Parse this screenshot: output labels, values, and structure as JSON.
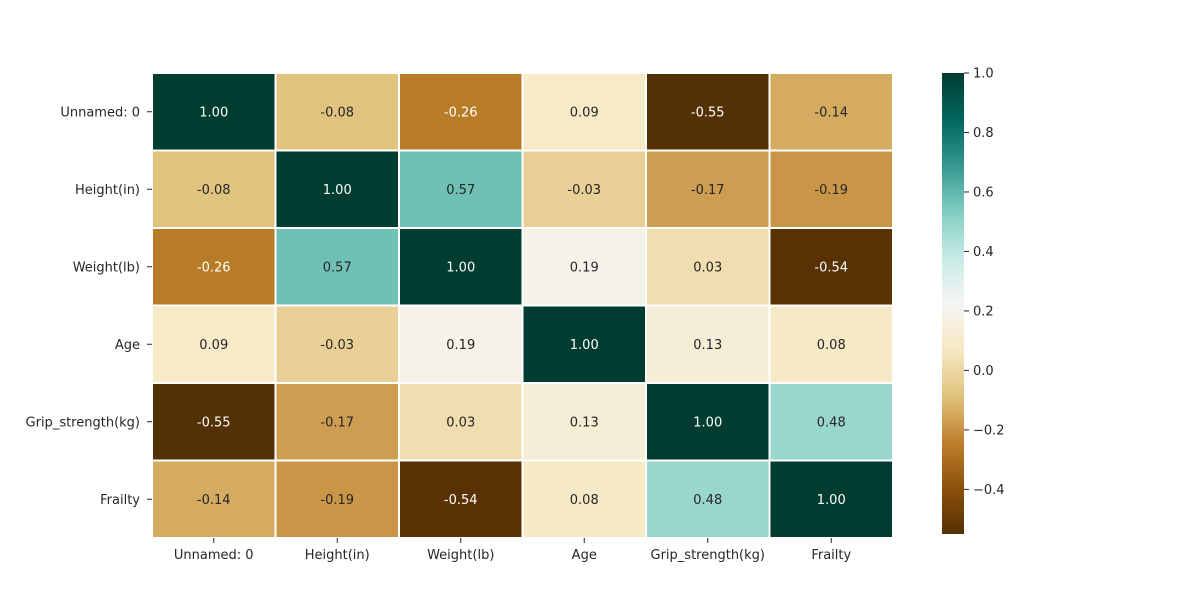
{
  "chart_data": {
    "type": "heatmap",
    "title": "",
    "xlabel": "",
    "ylabel": "",
    "x_labels": [
      "Unnamed: 0",
      "Height(in)",
      "Weight(lb)",
      "Age",
      "Grip_strength(kg)",
      "Frailty"
    ],
    "y_labels": [
      "Unnamed: 0",
      "Height(in)",
      "Weight(lb)",
      "Age",
      "Grip_strength(kg)",
      "Frailty"
    ],
    "values": [
      [
        1.0,
        -0.08,
        -0.26,
        0.09,
        -0.55,
        -0.14
      ],
      [
        -0.08,
        1.0,
        0.57,
        -0.03,
        -0.17,
        -0.19
      ],
      [
        -0.26,
        0.57,
        1.0,
        0.19,
        0.03,
        -0.54
      ],
      [
        0.09,
        -0.03,
        0.19,
        1.0,
        0.13,
        0.08
      ],
      [
        -0.55,
        -0.17,
        0.03,
        0.13,
        1.0,
        0.48
      ],
      [
        -0.14,
        -0.19,
        -0.54,
        0.08,
        0.48,
        1.0
      ]
    ],
    "value_format": "0.00",
    "colormap": "BrBG",
    "colormap_stops": [
      "#543005",
      "#8c510a",
      "#bf812d",
      "#dfc27d",
      "#f6e8c3",
      "#f5f5f5",
      "#c7eae5",
      "#80cdc1",
      "#35978f",
      "#01665e",
      "#003c30"
    ],
    "vmin": -0.55,
    "vmax": 1.0,
    "cell_border_color": "#ffffff",
    "colorbar": {
      "ticks": [
        -0.4,
        -0.2,
        0.0,
        0.2,
        0.4,
        0.6,
        0.8,
        1.0
      ],
      "tick_labels": [
        "−0.4",
        "−0.2",
        "0.0",
        "0.2",
        "0.4",
        "0.6",
        "0.8",
        "1.0"
      ],
      "placement": "right"
    },
    "grid": false,
    "legend": "none"
  }
}
